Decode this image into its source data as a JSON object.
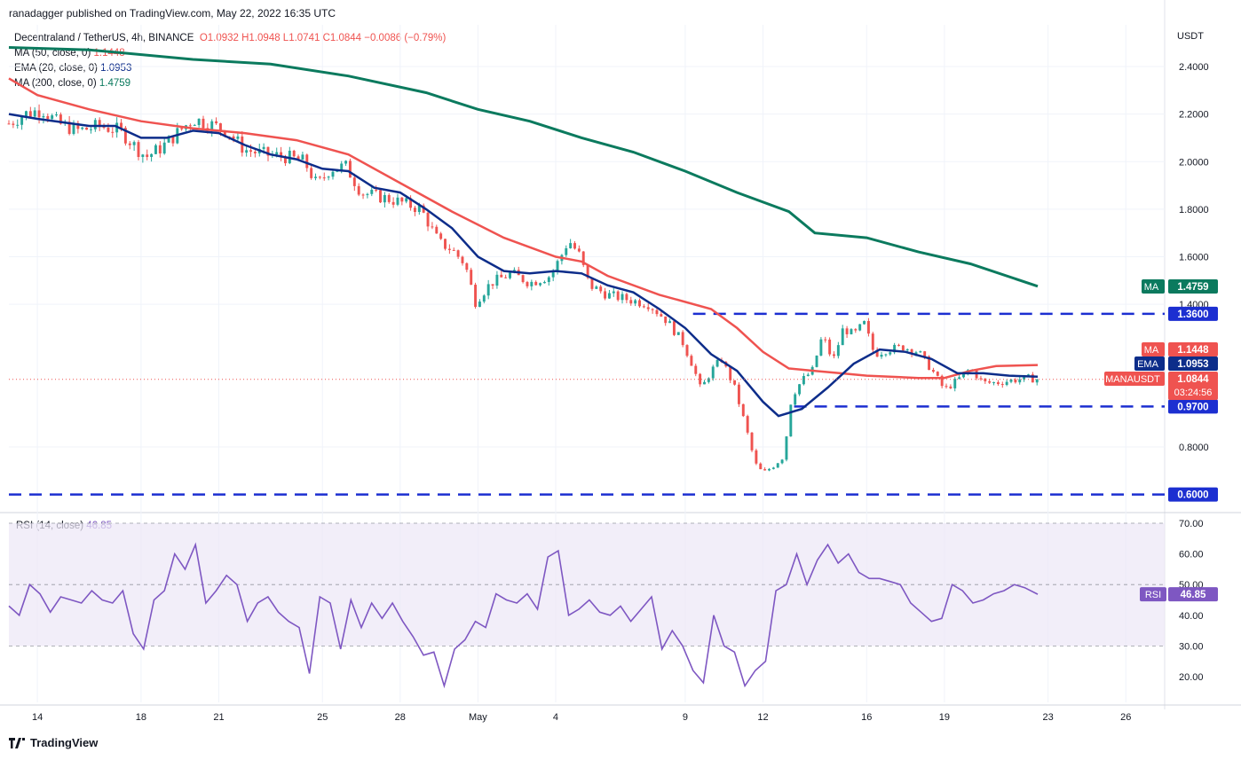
{
  "header": {
    "publisher": "ranadagger published on TradingView.com, May 22, 2022 16:35 UTC"
  },
  "legend": {
    "symbol": "Decentraland / TetherUS, 4h, BINANCE",
    "ohlc": "O1.0932  H1.0948  L1.0741  C1.0844  −0.0086 (−0.79%)",
    "ma50_label": "MA (50, close, 0)",
    "ma50_value": "1.1448",
    "ema20_label": "EMA (20, close, 0)",
    "ema20_value": "1.0953",
    "ma200_label": "MA (200, close, 0)",
    "ma200_value": "1.4759"
  },
  "rsi_legend": {
    "label": "RSI (14, close)",
    "value": "46.85"
  },
  "colors": {
    "up": "#26a69a",
    "down": "#ef5350",
    "ema20": "#0d2d8a",
    "ma50": "#ef5350",
    "ma200": "#0b7a5e",
    "level": "#1c2fd1",
    "rsi": "#7e57c2",
    "rsi_band": "#ede7f6"
  },
  "footer": {
    "brand": "TradingView"
  },
  "chart_data": [
    {
      "type": "candlestick",
      "currency_label": "USDT",
      "y_ticks": [
        "2.4000",
        "2.2000",
        "2.0000",
        "1.8000",
        "1.6000",
        "1.4000",
        "0.8000"
      ],
      "ylim": [
        0.58,
        2.55
      ],
      "x_ticks": [
        "14",
        "18",
        "21",
        "25",
        "28",
        "May",
        "4",
        "9",
        "12",
        "16",
        "19",
        "23",
        "26"
      ],
      "x_tick_days": [
        14,
        18,
        21,
        25,
        28,
        31,
        34,
        39,
        42,
        46,
        49,
        53,
        56
      ],
      "horizontal_levels": [
        {
          "label": "1.3600",
          "value": 1.36
        },
        {
          "label": "0.9700",
          "value": 0.97
        },
        {
          "label": "0.6000",
          "value": 0.6
        }
      ],
      "price_tags": [
        {
          "name": "MA",
          "value": "1.4759",
          "price": 1.4759,
          "color": "#0b7a5e"
        },
        {
          "name": "MA",
          "value": "1.1448",
          "price": 1.1448,
          "color": "#ef5350"
        },
        {
          "name": "EMA",
          "value": "1.0953",
          "price": 1.0953,
          "color": "#0d2d8a"
        },
        {
          "name": "MANAUSDT",
          "value": "1.0844",
          "price": 1.0844,
          "countdown": "03:24:56",
          "color": "#ef5350"
        }
      ],
      "series_close": {
        "x_day_start": 12.9,
        "x_day_step": 0.1667,
        "anchors": [
          [
            12.9,
            2.16
          ],
          [
            13.5,
            2.2
          ],
          [
            14.2,
            2.22
          ],
          [
            14.8,
            2.16
          ],
          [
            15.6,
            2.13
          ],
          [
            16.4,
            2.15
          ],
          [
            17.2,
            2.13
          ],
          [
            17.8,
            2.06
          ],
          [
            18.2,
            2.02
          ],
          [
            18.8,
            2.06
          ],
          [
            19.4,
            2.12
          ],
          [
            20.0,
            2.18
          ],
          [
            20.6,
            2.16
          ],
          [
            21.3,
            2.13
          ],
          [
            22.0,
            2.05
          ],
          [
            22.8,
            2.03
          ],
          [
            23.6,
            2.02
          ],
          [
            24.3,
            2.0
          ],
          [
            24.8,
            1.9
          ],
          [
            25.3,
            1.97
          ],
          [
            25.9,
            1.98
          ],
          [
            26.5,
            1.87
          ],
          [
            27.3,
            1.85
          ],
          [
            28.0,
            1.83
          ],
          [
            28.8,
            1.8
          ],
          [
            29.5,
            1.66
          ],
          [
            30.0,
            1.63
          ],
          [
            30.5,
            1.57
          ],
          [
            30.9,
            1.41
          ],
          [
            31.5,
            1.49
          ],
          [
            32.3,
            1.53
          ],
          [
            33.0,
            1.49
          ],
          [
            33.8,
            1.52
          ],
          [
            34.2,
            1.6
          ],
          [
            34.5,
            1.67
          ],
          [
            34.9,
            1.61
          ],
          [
            35.3,
            1.48
          ],
          [
            36.0,
            1.44
          ],
          [
            36.8,
            1.42
          ],
          [
            37.6,
            1.4
          ],
          [
            38.3,
            1.33
          ],
          [
            38.9,
            1.24
          ],
          [
            39.3,
            1.14
          ],
          [
            39.6,
            1.04
          ],
          [
            40.0,
            1.12
          ],
          [
            40.4,
            1.17
          ],
          [
            40.9,
            1.05
          ],
          [
            41.3,
            0.9
          ],
          [
            41.7,
            0.73
          ],
          [
            42.0,
            0.69
          ],
          [
            42.4,
            0.72
          ],
          [
            42.8,
            0.76
          ],
          [
            43.1,
            1.01
          ],
          [
            43.5,
            1.08
          ],
          [
            43.9,
            1.12
          ],
          [
            44.3,
            1.27
          ],
          [
            44.7,
            1.16
          ],
          [
            45.1,
            1.3
          ],
          [
            45.5,
            1.27
          ],
          [
            45.9,
            1.32
          ],
          [
            46.3,
            1.19
          ],
          [
            46.8,
            1.21
          ],
          [
            47.4,
            1.22
          ],
          [
            48.0,
            1.2
          ],
          [
            48.6,
            1.11
          ],
          [
            49.0,
            1.04
          ],
          [
            49.5,
            1.08
          ],
          [
            50.0,
            1.13
          ],
          [
            50.5,
            1.07
          ],
          [
            51.0,
            1.07
          ],
          [
            51.6,
            1.08
          ],
          [
            52.2,
            1.09
          ],
          [
            52.6,
            1.0844
          ]
        ]
      },
      "ema20": [
        [
          12.9,
          2.2
        ],
        [
          14,
          2.18
        ],
        [
          16,
          2.15
        ],
        [
          17,
          2.15
        ],
        [
          18,
          2.1
        ],
        [
          19,
          2.1
        ],
        [
          20,
          2.13
        ],
        [
          21,
          2.12
        ],
        [
          22,
          2.07
        ],
        [
          23,
          2.03
        ],
        [
          24,
          2.01
        ],
        [
          25,
          1.97
        ],
        [
          26,
          1.96
        ],
        [
          27,
          1.89
        ],
        [
          28,
          1.87
        ],
        [
          29,
          1.8
        ],
        [
          30,
          1.72
        ],
        [
          31,
          1.6
        ],
        [
          32,
          1.54
        ],
        [
          33,
          1.53
        ],
        [
          34,
          1.54
        ],
        [
          35,
          1.53
        ],
        [
          36,
          1.48
        ],
        [
          37,
          1.45
        ],
        [
          38,
          1.38
        ],
        [
          39,
          1.3
        ],
        [
          40,
          1.19
        ],
        [
          41,
          1.12
        ],
        [
          42,
          0.99
        ],
        [
          42.6,
          0.93
        ],
        [
          43.5,
          0.96
        ],
        [
          44.5,
          1.05
        ],
        [
          45.5,
          1.15
        ],
        [
          46.5,
          1.21
        ],
        [
          47.5,
          1.2
        ],
        [
          48.5,
          1.17
        ],
        [
          49.5,
          1.11
        ],
        [
          50.5,
          1.11
        ],
        [
          51.5,
          1.1
        ],
        [
          52.6,
          1.0953
        ]
      ],
      "ma50": [
        [
          12.9,
          2.35
        ],
        [
          14,
          2.28
        ],
        [
          16,
          2.22
        ],
        [
          18,
          2.17
        ],
        [
          20,
          2.14
        ],
        [
          22,
          2.12
        ],
        [
          24,
          2.09
        ],
        [
          26,
          2.03
        ],
        [
          28,
          1.91
        ],
        [
          30,
          1.79
        ],
        [
          32,
          1.68
        ],
        [
          34,
          1.6
        ],
        [
          35,
          1.58
        ],
        [
          36,
          1.52
        ],
        [
          38,
          1.44
        ],
        [
          40,
          1.38
        ],
        [
          41,
          1.3
        ],
        [
          42,
          1.2
        ],
        [
          43,
          1.13
        ],
        [
          44,
          1.12
        ],
        [
          45,
          1.11
        ],
        [
          46,
          1.1
        ],
        [
          48,
          1.09
        ],
        [
          49,
          1.09
        ],
        [
          50,
          1.12
        ],
        [
          51,
          1.14
        ],
        [
          52.6,
          1.1448
        ]
      ],
      "ma200": [
        [
          12.9,
          2.48
        ],
        [
          16,
          2.47
        ],
        [
          20,
          2.43
        ],
        [
          23,
          2.41
        ],
        [
          26,
          2.36
        ],
        [
          29,
          2.29
        ],
        [
          31,
          2.22
        ],
        [
          33,
          2.17
        ],
        [
          35,
          2.1
        ],
        [
          37,
          2.04
        ],
        [
          39,
          1.96
        ],
        [
          41,
          1.87
        ],
        [
          43,
          1.79
        ],
        [
          44,
          1.7
        ],
        [
          46,
          1.68
        ],
        [
          48,
          1.62
        ],
        [
          50,
          1.57
        ],
        [
          52.6,
          1.4759
        ]
      ]
    },
    {
      "type": "line",
      "name": "RSI (14, close)",
      "y_ticks": [
        "70.00",
        "60.00",
        "50.00",
        "40.00",
        "30.00",
        "20.00"
      ],
      "ylim": [
        12,
        72
      ],
      "band": [
        30,
        70
      ],
      "midline": 50,
      "last_label": "46.85",
      "tag_name": "RSI",
      "x": [
        12.9,
        13.3,
        13.7,
        14.1,
        14.5,
        14.9,
        15.3,
        15.7,
        16.1,
        16.5,
        16.9,
        17.3,
        17.7,
        18.1,
        18.5,
        18.9,
        19.3,
        19.7,
        20.1,
        20.5,
        20.9,
        21.3,
        21.7,
        22.1,
        22.5,
        22.9,
        23.3,
        23.7,
        24.1,
        24.5,
        24.9,
        25.3,
        25.7,
        26.1,
        26.5,
        26.9,
        27.3,
        27.7,
        28.1,
        28.5,
        28.9,
        29.3,
        29.7,
        30.1,
        30.5,
        30.9,
        31.3,
        31.7,
        32.1,
        32.5,
        32.9,
        33.3,
        33.7,
        34.1,
        34.5,
        34.9,
        35.3,
        35.7,
        36.1,
        36.5,
        36.9,
        37.3,
        37.7,
        38.1,
        38.5,
        38.9,
        39.3,
        39.7,
        40.1,
        40.5,
        40.9,
        41.3,
        41.7,
        42.1,
        42.5,
        42.9,
        43.3,
        43.7,
        44.1,
        44.5,
        44.9,
        45.3,
        45.7,
        46.1,
        46.5,
        46.9,
        47.3,
        47.7,
        48.1,
        48.5,
        48.9,
        49.3,
        49.7,
        50.1,
        50.5,
        50.9,
        51.3,
        51.7,
        52.1,
        52.6
      ],
      "values": [
        43,
        40,
        50,
        47,
        41,
        46,
        45,
        44,
        48,
        45,
        44,
        48,
        34,
        29,
        45,
        48,
        60,
        55,
        63,
        44,
        48,
        53,
        50,
        38,
        44,
        46,
        41,
        38,
        36,
        21,
        46,
        44,
        29,
        45,
        36,
        44,
        39,
        44,
        38,
        33,
        27,
        28,
        17,
        29,
        32,
        38,
        36,
        47,
        45,
        44,
        47,
        42,
        59,
        61,
        40,
        42,
        45,
        41,
        40,
        43,
        38,
        42,
        46,
        29,
        35,
        30,
        22,
        18,
        40,
        30,
        28,
        17,
        22,
        25,
        48,
        50,
        60,
        50,
        58,
        63,
        57,
        60,
        54,
        52,
        52,
        51,
        50,
        44,
        41,
        38,
        39,
        50,
        48,
        44,
        45,
        47,
        48,
        50,
        49,
        46.85
      ]
    }
  ]
}
